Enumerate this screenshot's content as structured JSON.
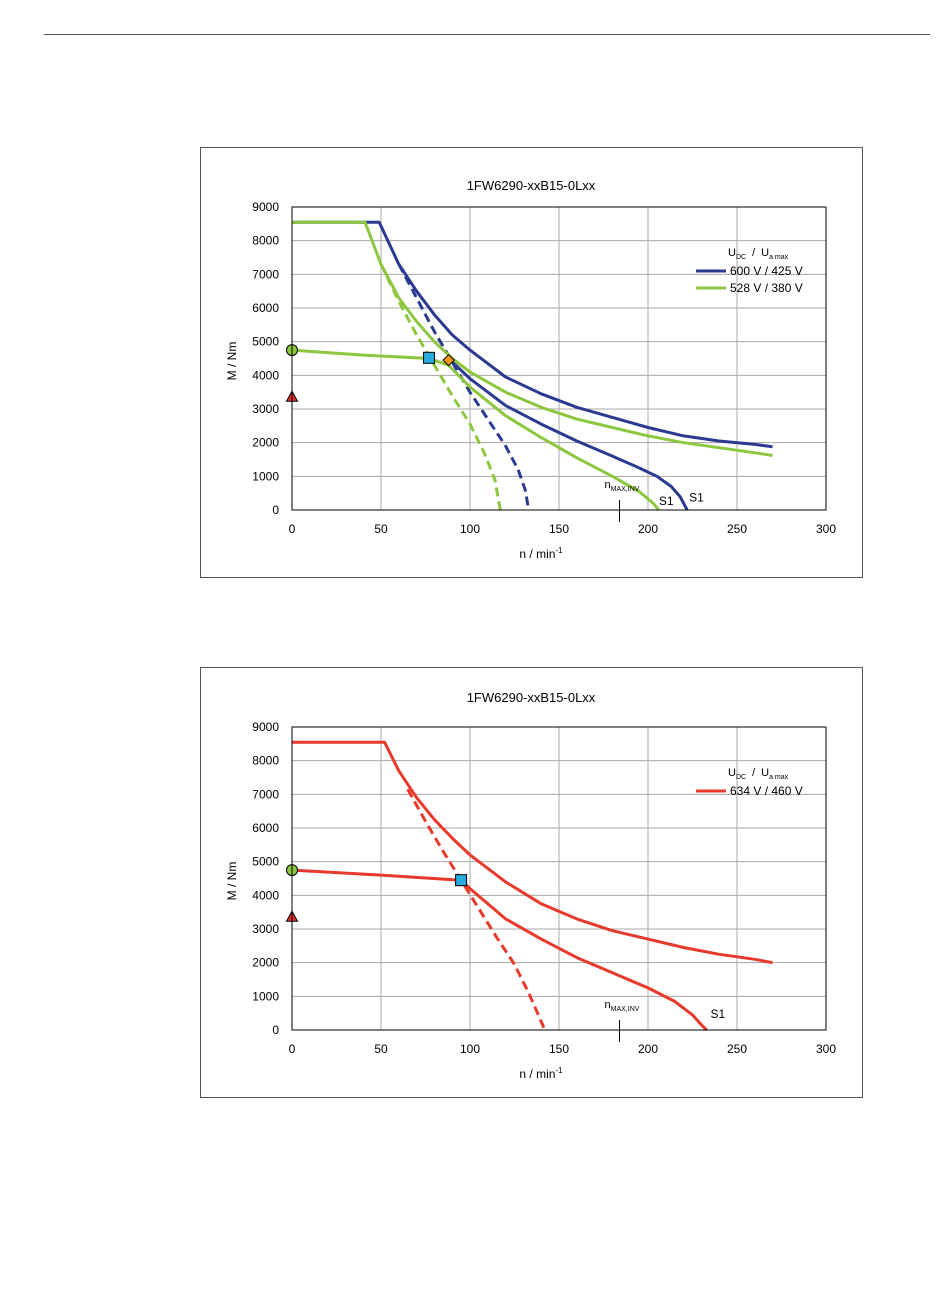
{
  "charts": [
    {
      "title": "1FW6290-xxB15-0Lxx",
      "xlabel": "n / min",
      "xlabel_sup": "-1",
      "ylabel": "M / Nm",
      "legend_header": {
        "u1": "U",
        "s1": "DC",
        "slash": "/",
        "u2": "U",
        "s2": "a max"
      },
      "nmax_main": "n",
      "nmax_sub": "MAX,INV",
      "s1_label": "S1"
    },
    {
      "title": "1FW6290-xxB15-0Lxx",
      "xlabel": "n / min",
      "xlabel_sup": "-1",
      "ylabel": "M / Nm",
      "legend_header": {
        "u1": "U",
        "s1": "DC",
        "slash": "/",
        "u2": "U",
        "s2": "a max"
      },
      "nmax_main": "n",
      "nmax_sub": "MAX,INV",
      "s1_label": "S1"
    }
  ],
  "chart_data": [
    {
      "type": "line",
      "title": "1FW6290-xxB15-0Lxx",
      "xlabel": "n / min-1",
      "ylabel": "M / Nm",
      "xlim": [
        0,
        300
      ],
      "ylim": [
        0,
        9000
      ],
      "xticks": [
        0,
        50,
        100,
        150,
        200,
        250,
        300
      ],
      "yticks": [
        0,
        1000,
        2000,
        3000,
        4000,
        5000,
        6000,
        7000,
        8000,
        9000
      ],
      "grid": true,
      "legend_position": "right",
      "nmax_inv_x": 184,
      "series": [
        {
          "name": "600 V / 425 V",
          "color": "#2b3990",
          "curves": [
            {
              "style": "solid",
              "points": [
                [
                  0,
                  8550
                ],
                [
                  49,
                  8550
                ],
                [
                  60,
                  7300
                ],
                [
                  70,
                  6500
                ],
                [
                  80,
                  5800
                ],
                [
                  90,
                  5200
                ],
                [
                  100,
                  4750
                ],
                [
                  120,
                  3950
                ],
                [
                  140,
                  3450
                ],
                [
                  160,
                  3050
                ],
                [
                  180,
                  2750
                ],
                [
                  200,
                  2450
                ],
                [
                  220,
                  2200
                ],
                [
                  240,
                  2050
                ],
                [
                  260,
                  1950
                ],
                [
                  270,
                  1880
                ]
              ]
            },
            {
              "style": "solid",
              "points": [
                [
                  88,
                  4500
                ],
                [
                  100,
                  3900
                ],
                [
                  120,
                  3100
                ],
                [
                  140,
                  2550
                ],
                [
                  160,
                  2050
                ],
                [
                  180,
                  1600
                ],
                [
                  195,
                  1250
                ],
                [
                  205,
                  1000
                ],
                [
                  213,
                  700
                ],
                [
                  218,
                  400
                ],
                [
                  222,
                  0
                ]
              ]
            },
            {
              "style": "dashed",
              "points": [
                [
                  60,
                  7300
                ],
                [
                  70,
                  6300
                ],
                [
                  80,
                  5300
                ],
                [
                  90,
                  4400
                ],
                [
                  100,
                  3500
                ],
                [
                  110,
                  2700
                ],
                [
                  120,
                  1900
                ],
                [
                  127,
                  1200
                ],
                [
                  131,
                  600
                ],
                [
                  133,
                  0
                ]
              ]
            }
          ]
        },
        {
          "name": "528 V / 380 V",
          "color": "#8dc63f",
          "curves": [
            {
              "style": "solid",
              "points": [
                [
                  0,
                  8550
                ],
                [
                  41,
                  8550
                ],
                [
                  50,
                  7300
                ],
                [
                  60,
                  6300
                ],
                [
                  70,
                  5600
                ],
                [
                  80,
                  5000
                ],
                [
                  90,
                  4500
                ],
                [
                  100,
                  4100
                ],
                [
                  120,
                  3500
                ],
                [
                  140,
                  3050
                ],
                [
                  160,
                  2700
                ],
                [
                  180,
                  2450
                ],
                [
                  200,
                  2200
                ],
                [
                  220,
                  2000
                ],
                [
                  240,
                  1850
                ],
                [
                  260,
                  1700
                ],
                [
                  270,
                  1620
                ]
              ]
            },
            {
              "style": "solid",
              "points": [
                [
                  0,
                  4750
                ],
                [
                  40,
                  4600
                ],
                [
                  77,
                  4500
                ],
                [
                  88,
                  4300
                ],
                [
                  100,
                  3650
                ],
                [
                  120,
                  2800
                ],
                [
                  140,
                  2150
                ],
                [
                  160,
                  1550
                ],
                [
                  180,
                  1000
                ],
                [
                  195,
                  550
                ],
                [
                  203,
                  200
                ],
                [
                  206,
                  0
                ]
              ]
            },
            {
              "style": "dashed",
              "points": [
                [
                  50,
                  7300
                ],
                [
                  60,
                  6200
                ],
                [
                  70,
                  5200
                ],
                [
                  80,
                  4300
                ],
                [
                  90,
                  3400
                ],
                [
                  100,
                  2550
                ],
                [
                  108,
                  1700
                ],
                [
                  114,
                  900
                ],
                [
                  117,
                  0
                ]
              ]
            }
          ]
        }
      ],
      "markers": [
        {
          "shape": "circle",
          "x": 0,
          "y": 4750,
          "color": "#8dc63f"
        },
        {
          "shape": "triangle",
          "x": 0,
          "y": 3350,
          "color": "#e8322c"
        },
        {
          "shape": "square",
          "x": 77,
          "y": 4520,
          "color": "#29abe2"
        },
        {
          "shape": "diamond",
          "x": 88,
          "y": 4450,
          "color": "#f7941d"
        }
      ],
      "annotations": [
        {
          "text": "S1",
          "x": 205,
          "y": 150
        },
        {
          "text": "S1",
          "x": 222,
          "y": 250
        }
      ]
    },
    {
      "type": "line",
      "title": "1FW6290-xxB15-0Lxx",
      "xlabel": "n / min-1",
      "ylabel": "M / Nm",
      "xlim": [
        0,
        300
      ],
      "ylim": [
        0,
        9000
      ],
      "xticks": [
        0,
        50,
        100,
        150,
        200,
        250,
        300
      ],
      "yticks": [
        0,
        1000,
        2000,
        3000,
        4000,
        5000,
        6000,
        7000,
        8000,
        9000
      ],
      "grid": true,
      "legend_position": "right",
      "nmax_inv_x": 184,
      "series": [
        {
          "name": "634 V / 460 V",
          "color": "#e8392c",
          "curves": [
            {
              "style": "solid",
              "points": [
                [
                  0,
                  8550
                ],
                [
                  52,
                  8550
                ],
                [
                  60,
                  7700
                ],
                [
                  70,
                  6900
                ],
                [
                  80,
                  6250
                ],
                [
                  90,
                  5700
                ],
                [
                  100,
                  5200
                ],
                [
                  120,
                  4400
                ],
                [
                  140,
                  3750
                ],
                [
                  160,
                  3300
                ],
                [
                  180,
                  2950
                ],
                [
                  200,
                  2700
                ],
                [
                  220,
                  2450
                ],
                [
                  240,
                  2250
                ],
                [
                  260,
                  2100
                ],
                [
                  270,
                  2000
                ]
              ]
            },
            {
              "style": "solid",
              "points": [
                [
                  0,
                  4750
                ],
                [
                  50,
                  4600
                ],
                [
                  95,
                  4450
                ],
                [
                  100,
                  4200
                ],
                [
                  120,
                  3300
                ],
                [
                  140,
                  2700
                ],
                [
                  160,
                  2150
                ],
                [
                  180,
                  1700
                ],
                [
                  200,
                  1250
                ],
                [
                  215,
                  850
                ],
                [
                  225,
                  450
                ],
                [
                  230,
                  150
                ],
                [
                  233,
                  0
                ]
              ]
            },
            {
              "style": "dashed",
              "points": [
                [
                  65,
                  7150
                ],
                [
                  75,
                  6200
                ],
                [
                  85,
                  5300
                ],
                [
                  95,
                  4450
                ],
                [
                  105,
                  3600
                ],
                [
                  115,
                  2750
                ],
                [
                  125,
                  1950
                ],
                [
                  133,
                  1100
                ],
                [
                  138,
                  500
                ],
                [
                  142,
                  0
                ]
              ]
            }
          ]
        }
      ],
      "markers": [
        {
          "shape": "circle",
          "x": 0,
          "y": 4750,
          "color": "#8dc63f"
        },
        {
          "shape": "triangle",
          "x": 0,
          "y": 3350,
          "color": "#e8322c"
        },
        {
          "shape": "square",
          "x": 95,
          "y": 4450,
          "color": "#29abe2"
        }
      ],
      "annotations": [
        {
          "text": "S1",
          "x": 234,
          "y": 350
        }
      ]
    }
  ]
}
